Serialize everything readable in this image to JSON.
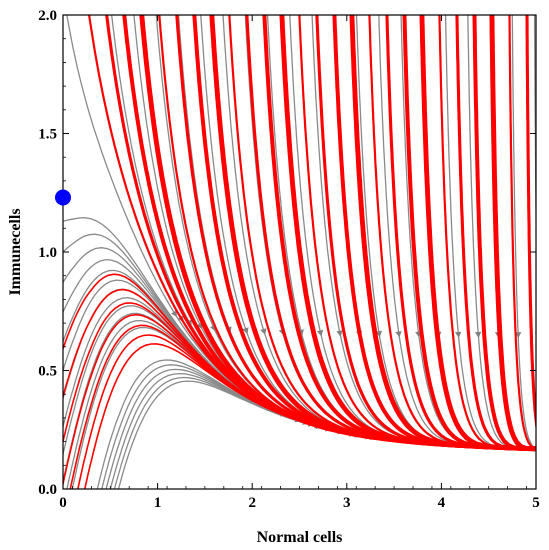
{
  "chart_data": {
    "type": "streamplot",
    "title": "",
    "xlabel": "Normal cells",
    "ylabel": "Immunecells",
    "xlim": [
      0,
      5
    ],
    "ylim": [
      0,
      2
    ],
    "xticks": [
      "0",
      "1",
      "2",
      "3",
      "4",
      "5"
    ],
    "yticks": [
      "0.0",
      "0.5",
      "1.0",
      "1.5",
      "2.0"
    ],
    "grid": false,
    "legend": "none",
    "colors": {
      "highlighted_streamlines": "#ff0000",
      "background_streamlines": "#8a8a8a",
      "equilibrium_point": "#0000ff"
    },
    "equilibrium_point": {
      "x": 0,
      "y": 1.23
    },
    "attracting_point": {
      "x": 5,
      "y": 0.18
    }
  }
}
